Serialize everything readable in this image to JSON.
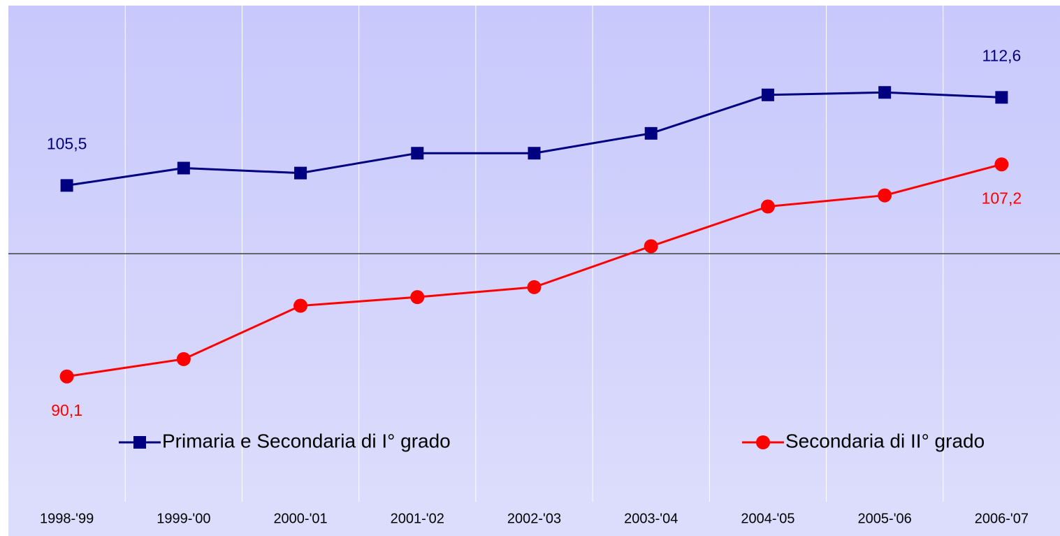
{
  "chart_data": {
    "type": "line",
    "categories": [
      "1998-'99",
      "1999-'00",
      "2000-'01",
      "2001-'02",
      "2002-'03",
      "2003-'04",
      "2004-'05",
      "2005-'06",
      "2006-'07"
    ],
    "series": [
      {
        "name": "Primaria e Secondaria di I° grado",
        "color": "#000080",
        "marker": "square",
        "values": [
          105.5,
          106.9,
          106.5,
          108.1,
          108.1,
          109.7,
          112.8,
          113.0,
          112.6
        ],
        "value_labels": [
          "105,5",
          null,
          null,
          null,
          null,
          null,
          null,
          null,
          "112,6"
        ]
      },
      {
        "name": "Secondaria di II° grado",
        "color": "#ff0000",
        "marker": "circle",
        "values": [
          90.1,
          91.5,
          95.8,
          96.5,
          97.3,
          100.6,
          103.8,
          104.7,
          107.2
        ],
        "value_labels": [
          "90,1",
          null,
          null,
          null,
          null,
          null,
          null,
          null,
          "107,2"
        ]
      }
    ],
    "ylim": [
      80,
      120
    ],
    "hline": 100,
    "grid": true
  }
}
